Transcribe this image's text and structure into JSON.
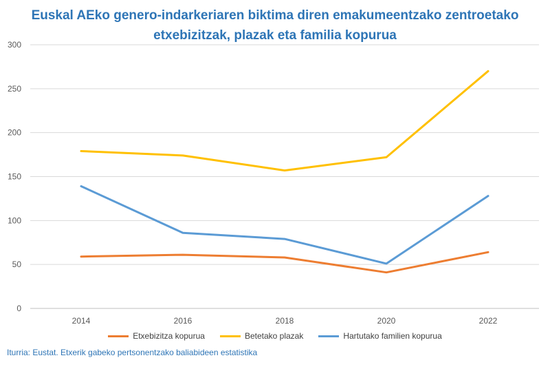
{
  "title_lines": [
    "Euskal AEko genero-indarkeriaren biktima diren emakumeentzako zentroetako",
    "etxebizitzak, plazak eta familia kopurua"
  ],
  "source": "Iturria: Eustat. Etxerik gabeko pertsonentzako baliabideen estatistika",
  "chart_data": {
    "type": "line",
    "title": "Euskal AEko genero-indarkeriaren biktima diren emakumeentzako zentroetako etxebizitzak, plazak eta familia kopurua",
    "categories": [
      "2014",
      "2016",
      "2018",
      "2020",
      "2022"
    ],
    "y_ticks": [
      "0",
      "50",
      "100",
      "150",
      "200",
      "250",
      "300"
    ],
    "ylim": [
      0,
      300
    ],
    "grid": true,
    "legend_position": "bottom",
    "xlabel": "",
    "ylabel": "",
    "series": [
      {
        "name": "Etxebizitza kopurua",
        "color": "#ed7d31",
        "values": [
          59,
          61,
          58,
          41,
          64
        ]
      },
      {
        "name": "Betetako plazak",
        "color": "#ffc000",
        "values": [
          179,
          174,
          157,
          172,
          270
        ]
      },
      {
        "name": "Hartutako familien kopurua",
        "color": "#5b9bd5",
        "values": [
          139,
          86,
          79,
          51,
          128
        ]
      }
    ]
  }
}
